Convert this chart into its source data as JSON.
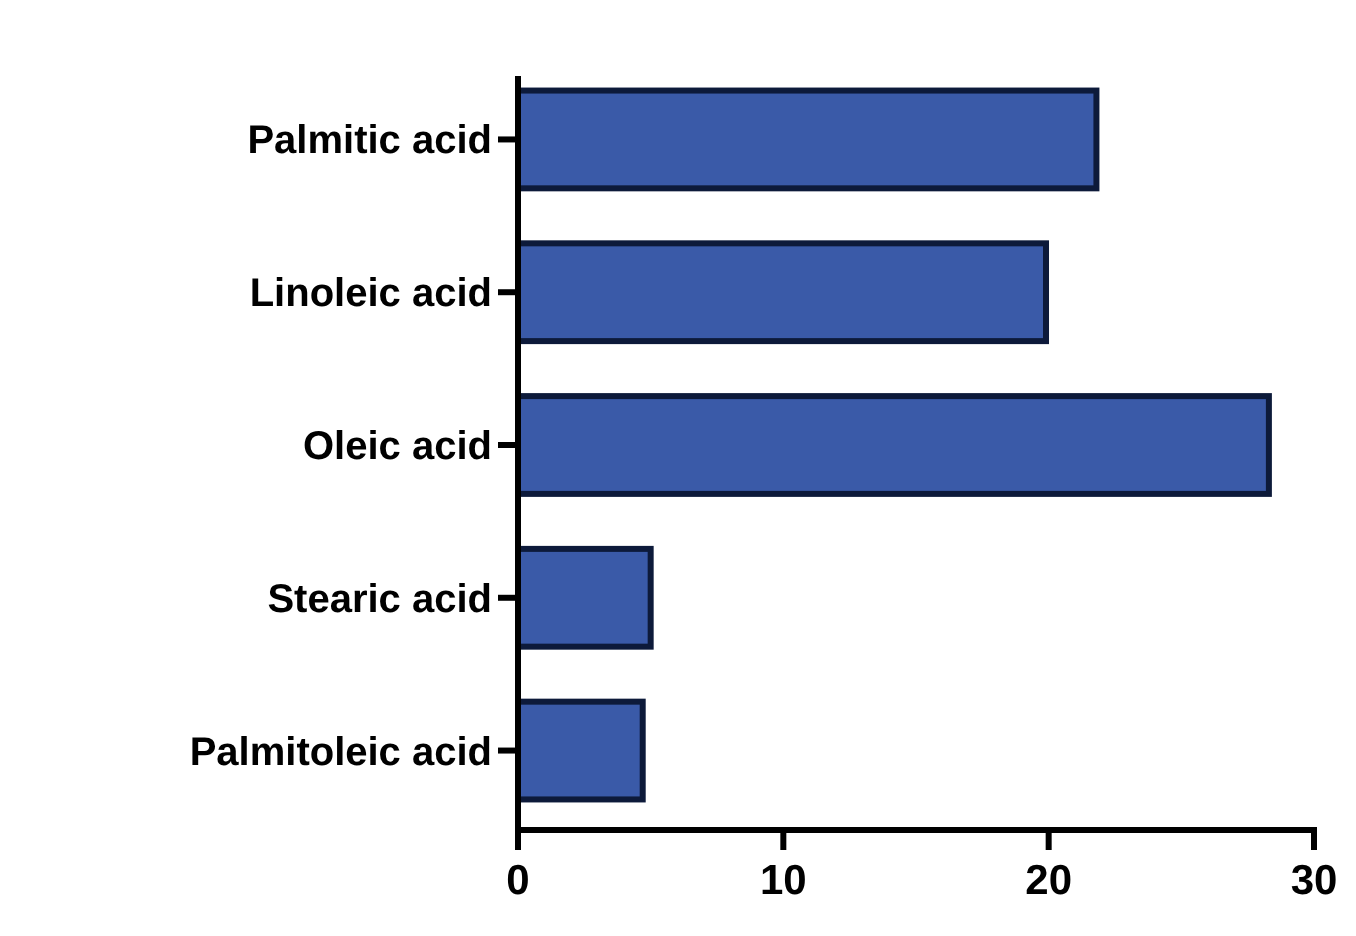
{
  "chart_data": {
    "type": "bar",
    "orientation": "horizontal",
    "categories": [
      "Palmitic acid",
      "Linoleic acid",
      "Oleic acid",
      "Stearic acid",
      "Palmitoleic acid"
    ],
    "values": [
      21.8,
      19.9,
      28.3,
      5.0,
      4.7
    ],
    "color": "#3a5aa8",
    "xlim": [
      0,
      30
    ],
    "xticks": [
      0,
      10,
      20,
      30
    ],
    "grid": false
  }
}
